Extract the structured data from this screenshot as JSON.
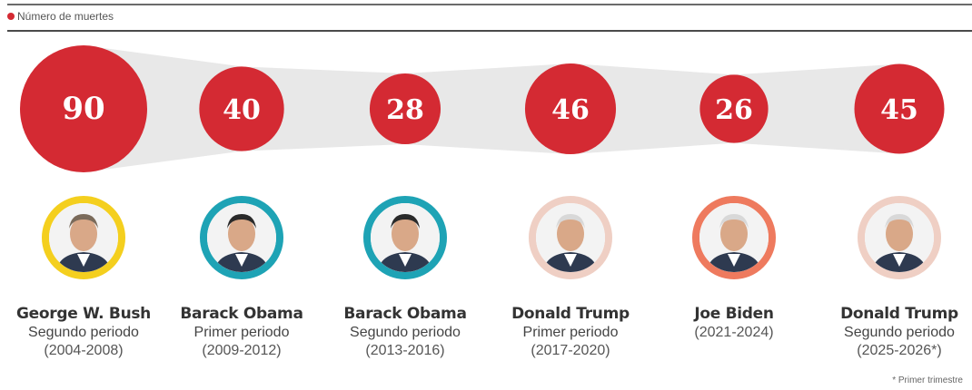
{
  "legend": {
    "label": "Número de muertes",
    "color": "#d42a33"
  },
  "note": "* Primer trimestre",
  "chart_data": {
    "type": "bubble",
    "series": [
      {
        "name": "Número de muertes",
        "values": [
          90,
          40,
          28,
          46,
          26,
          45
        ]
      }
    ],
    "categories": [
      {
        "name": "George W. Bush",
        "term": "Segundo periodo",
        "years": "(2004-2008)",
        "ring": "#f4cf1e",
        "icon": "portrait-bush-icon"
      },
      {
        "name": "Barack Obama",
        "term": "Primer periodo",
        "years": "(2009-2012)",
        "ring": "#1ea3b5",
        "icon": "portrait-obama-icon"
      },
      {
        "name": "Barack Obama",
        "term": "Segundo periodo",
        "years": "(2013-2016)",
        "ring": "#1ea3b5",
        "icon": "portrait-obama-icon"
      },
      {
        "name": "Donald Trump",
        "term": "Primer periodo",
        "years": "(2017-2020)",
        "ring": "#efcfc4",
        "icon": "portrait-trump-icon"
      },
      {
        "name": "Joe Biden",
        "term": "",
        "years": "(2021-2024)",
        "ring": "#ee7a5e",
        "icon": "portrait-biden-icon"
      },
      {
        "name": "Donald Trump",
        "term": "Segundo periodo",
        "years": "(2025-2026*)",
        "ring": "#efcfc4",
        "icon": "portrait-trump-icon"
      }
    ],
    "bubble_color": "#d42a33",
    "band_color": "#e8e8e8"
  }
}
